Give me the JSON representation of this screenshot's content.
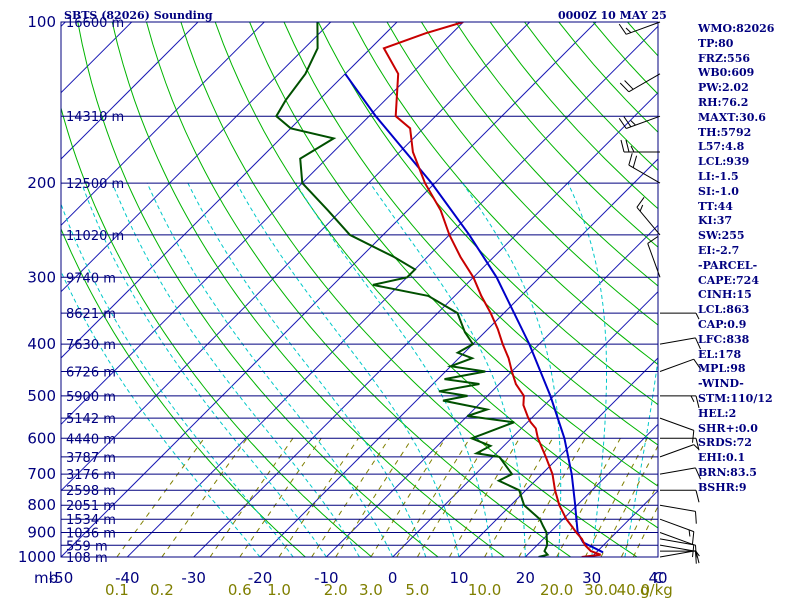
{
  "header": {
    "station": "SBTS (82026) Sounding",
    "time": "0000Z 10 MAY 25"
  },
  "colors": {
    "background": "#ffffff",
    "frame": "#00007f",
    "isobars": "#00007f",
    "isotherms": "#1a1ab4",
    "dry_adiabats": "#00b400",
    "moist_adiabats": "#00c8c8",
    "mixing_ratio": "#7f7f00",
    "temperature": "#c80000",
    "dewpoint": "#005000",
    "parcel": "#0000c8",
    "mixing_ratio_labels": "#7f7f00",
    "wind_barbs": "#000000"
  },
  "parameters": [
    "WMO:82026",
    "TP:80",
    "FRZ:556",
    "WB0:609",
    "PW:2.02",
    "RH:76.2",
    "MAXT:30.6",
    "TH:5792",
    "L57:4.8",
    "LCL:939",
    "LI:-1.5",
    "SI:-1.0",
    "TT:44",
    "KI:37",
    "SW:255",
    "EI:-2.7",
    "-PARCEL-",
    "CAPE:724",
    "CINH:15",
    "LCL:863",
    "CAP:0.9",
    "LFC:838",
    "EL:178",
    "MPL:98",
    "-WIND-",
    "STM:110/12",
    "HEL:2",
    "SHR+:0.0",
    "SRDS:72",
    "EHI:0.1",
    "BRN:83.5",
    "BSHR:9"
  ],
  "chart_data": {
    "type": "skew-t log-p sounding",
    "pressure_range_mb": [
      1000,
      100
    ],
    "temperature_axis_c": [
      -50,
      40
    ],
    "y_axis_unit_label": "mb",
    "x_axis_unit_label": "C",
    "mixing_ratio_unit_label": "g/kg",
    "isobar_labels": [
      "100",
      "200",
      "300",
      "400",
      "500",
      "600",
      "700",
      "800",
      "900",
      "1000"
    ],
    "temperature_ticks": [
      "-50",
      "-40",
      "-30",
      "-20",
      "-10",
      "0",
      "10",
      "20",
      "30",
      "40"
    ],
    "height_labels": [
      {
        "p": 1000,
        "h": "108 m"
      },
      {
        "p": 951,
        "h": "559 m"
      },
      {
        "p": 900,
        "h": "1036 m"
      },
      {
        "p": 850,
        "h": "1534 m"
      },
      {
        "p": 800,
        "h": "2051 m"
      },
      {
        "p": 750,
        "h": "2598 m"
      },
      {
        "p": 700,
        "h": "3176 m"
      },
      {
        "p": 650,
        "h": "3787 m"
      },
      {
        "p": 600,
        "h": "4440 m"
      },
      {
        "p": 550,
        "h": "5142 m"
      },
      {
        "p": 500,
        "h": "5900 m"
      },
      {
        "p": 450,
        "h": "6726 m"
      },
      {
        "p": 400,
        "h": "7630 m"
      },
      {
        "p": 350,
        "h": "8621 m"
      },
      {
        "p": 300,
        "h": "9740 m"
      },
      {
        "p": 250,
        "h": "11020 m"
      },
      {
        "p": 200,
        "h": "12500 m"
      },
      {
        "p": 150,
        "h": "14310 m"
      },
      {
        "p": 100,
        "h": "16600 m"
      }
    ],
    "mixing_ratio_labels": [
      "0.1",
      "0.2",
      "0.6",
      "1.0",
      "2.0",
      "3.0",
      "5.0",
      "10.0",
      "20.0",
      "30.0",
      "40.0"
    ],
    "mixing_ratio_lines_gkg": [
      0.1,
      0.2,
      0.4,
      0.6,
      1,
      1.5,
      2,
      3,
      4,
      5,
      7,
      10,
      14,
      20,
      26,
      30,
      36,
      40
    ],
    "dry_adiabats_theta_k": [
      260,
      270,
      280,
      290,
      300,
      310,
      320,
      330,
      340,
      350,
      360,
      370,
      380,
      390,
      400,
      410,
      420,
      430,
      440,
      450,
      460,
      470,
      480,
      490
    ],
    "moist_adiabats_c": [
      -20,
      -15,
      -10,
      -5,
      0,
      5,
      10,
      15,
      20,
      25,
      30,
      35,
      40
    ],
    "temperature": [
      {
        "p": 1000,
        "t": 28.5
      },
      {
        "p": 990,
        "t": 31.0
      },
      {
        "p": 975,
        "t": 29.0
      },
      {
        "p": 950,
        "t": 27.2
      },
      {
        "p": 925,
        "t": 25.8
      },
      {
        "p": 900,
        "t": 24.0
      },
      {
        "p": 875,
        "t": 22.3
      },
      {
        "p": 850,
        "t": 20.5
      },
      {
        "p": 800,
        "t": 17.3
      },
      {
        "p": 750,
        "t": 14.4
      },
      {
        "p": 700,
        "t": 11.6
      },
      {
        "p": 650,
        "t": 8.0
      },
      {
        "p": 600,
        "t": 4.0
      },
      {
        "p": 575,
        "t": 2.2
      },
      {
        "p": 560,
        "t": 0.5
      },
      {
        "p": 550,
        "t": -0.5
      },
      {
        "p": 520,
        "t": -3.2
      },
      {
        "p": 500,
        "t": -4.5
      },
      {
        "p": 475,
        "t": -7.5
      },
      {
        "p": 450,
        "t": -10.0
      },
      {
        "p": 425,
        "t": -12.5
      },
      {
        "p": 400,
        "t": -15.5
      },
      {
        "p": 375,
        "t": -18.5
      },
      {
        "p": 350,
        "t": -22.0
      },
      {
        "p": 325,
        "t": -26.0
      },
      {
        "p": 300,
        "t": -30.0
      },
      {
        "p": 275,
        "t": -35.0
      },
      {
        "p": 250,
        "t": -40.0
      },
      {
        "p": 225,
        "t": -45.0
      },
      {
        "p": 200,
        "t": -51.5
      },
      {
        "p": 175,
        "t": -58.0
      },
      {
        "p": 158,
        "t": -62.0
      },
      {
        "p": 150,
        "t": -66.0
      },
      {
        "p": 125,
        "t": -72.0
      },
      {
        "p": 112,
        "t": -78.0
      },
      {
        "p": 105,
        "t": -74.0
      },
      {
        "p": 100,
        "t": -70.0
      }
    ],
    "dewpoint": [
      {
        "p": 1000,
        "td": 22.0
      },
      {
        "p": 990,
        "td": 23.0
      },
      {
        "p": 975,
        "td": 22.0
      },
      {
        "p": 950,
        "td": 21.5
      },
      {
        "p": 925,
        "td": 20.5
      },
      {
        "p": 900,
        "td": 19.5
      },
      {
        "p": 875,
        "td": 18.0
      },
      {
        "p": 850,
        "td": 16.5
      },
      {
        "p": 800,
        "td": 12.0
      },
      {
        "p": 750,
        "td": 9.0
      },
      {
        "p": 720,
        "td": 4.5
      },
      {
        "p": 700,
        "td": 5.5
      },
      {
        "p": 650,
        "td": 1.0
      },
      {
        "p": 640,
        "td": -3.0
      },
      {
        "p": 620,
        "td": -2.0
      },
      {
        "p": 600,
        "td": -6.0
      },
      {
        "p": 590,
        "td": -5.0
      },
      {
        "p": 560,
        "td": -2.0
      },
      {
        "p": 545,
        "td": -10.0
      },
      {
        "p": 530,
        "td": -8.0
      },
      {
        "p": 510,
        "td": -16.0
      },
      {
        "p": 500,
        "td": -13.0
      },
      {
        "p": 490,
        "td": -18.0
      },
      {
        "p": 475,
        "td": -13.0
      },
      {
        "p": 465,
        "td": -19.0
      },
      {
        "p": 450,
        "td": -14.0
      },
      {
        "p": 440,
        "td": -20.0
      },
      {
        "p": 425,
        "td": -18.0
      },
      {
        "p": 415,
        "td": -21.0
      },
      {
        "p": 400,
        "td": -20.0
      },
      {
        "p": 380,
        "td": -23.0
      },
      {
        "p": 350,
        "td": -27.0
      },
      {
        "p": 325,
        "td": -34.0
      },
      {
        "p": 310,
        "td": -44.0
      },
      {
        "p": 300,
        "td": -40.0
      },
      {
        "p": 290,
        "td": -40.0
      },
      {
        "p": 275,
        "td": -45.0
      },
      {
        "p": 250,
        "td": -55.0
      },
      {
        "p": 225,
        "td": -62.0
      },
      {
        "p": 200,
        "td": -70.0
      },
      {
        "p": 180,
        "td": -74.0
      },
      {
        "p": 165,
        "td": -72.0
      },
      {
        "p": 158,
        "td": -80.0
      },
      {
        "p": 150,
        "td": -84.0
      },
      {
        "p": 140,
        "td": -85.0
      },
      {
        "p": 125,
        "td": -86.0
      },
      {
        "p": 112,
        "td": -88.0
      },
      {
        "p": 100,
        "td": -92.0
      }
    ],
    "parcel": [
      {
        "p": 980,
        "t": 31.0
      },
      {
        "p": 939,
        "t": 26.5
      },
      {
        "p": 900,
        "t": 24.2
      },
      {
        "p": 850,
        "t": 22.0
      },
      {
        "p": 800,
        "t": 19.7
      },
      {
        "p": 700,
        "t": 14.5
      },
      {
        "p": 600,
        "t": 8.0
      },
      {
        "p": 500,
        "t": -0.5
      },
      {
        "p": 400,
        "t": -11.5
      },
      {
        "p": 300,
        "t": -26.5
      },
      {
        "p": 250,
        "t": -37.0
      },
      {
        "p": 200,
        "t": -50.5
      },
      {
        "p": 178,
        "t": -58.0
      },
      {
        "p": 150,
        "t": -69.0
      },
      {
        "p": 125,
        "t": -80.0
      }
    ],
    "wind_profile": [
      {
        "p": 1000,
        "dir": 80,
        "spd": 5
      },
      {
        "p": 975,
        "dir": 90,
        "spd": 10
      },
      {
        "p": 950,
        "dir": 100,
        "spd": 10
      },
      {
        "p": 925,
        "dir": 100,
        "spd": 10
      },
      {
        "p": 900,
        "dir": 110,
        "spd": 10
      },
      {
        "p": 850,
        "dir": 110,
        "spd": 15
      },
      {
        "p": 800,
        "dir": 100,
        "spd": 10
      },
      {
        "p": 750,
        "dir": 90,
        "spd": 10
      },
      {
        "p": 700,
        "dir": 80,
        "spd": 10
      },
      {
        "p": 650,
        "dir": 70,
        "spd": 5
      },
      {
        "p": 600,
        "dir": 90,
        "spd": 10
      },
      {
        "p": 550,
        "dir": 110,
        "spd": 10
      },
      {
        "p": 500,
        "dir": 90,
        "spd": 15
      },
      {
        "p": 450,
        "dir": 70,
        "spd": 10
      },
      {
        "p": 400,
        "dir": 80,
        "spd": 10
      },
      {
        "p": 350,
        "dir": 90,
        "spd": 5
      },
      {
        "p": 300,
        "dir": 340,
        "spd": 10
      },
      {
        "p": 250,
        "dir": 320,
        "spd": 15
      },
      {
        "p": 200,
        "dir": 300,
        "spd": 20
      },
      {
        "p": 175,
        "dir": 270,
        "spd": 25
      },
      {
        "p": 150,
        "dir": 250,
        "spd": 25
      },
      {
        "p": 125,
        "dir": 240,
        "spd": 20
      },
      {
        "p": 100,
        "dir": 250,
        "spd": 15
      }
    ]
  }
}
